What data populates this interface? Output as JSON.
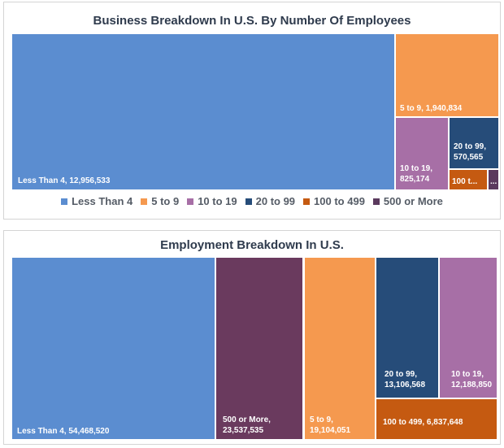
{
  "chart_data": [
    {
      "type": "treemap",
      "title": "Business Breakdown In U.S. By Number Of Employees",
      "legend_position": "bottom",
      "items": [
        {
          "name": "Less Than 4",
          "value": 12956533,
          "label": "Less Than 4, 12,956,533",
          "color": "#5b8dd0"
        },
        {
          "name": "5 to 9",
          "value": 1940834,
          "label": "5 to 9, 1,940,834",
          "color": "#f5994f"
        },
        {
          "name": "10 to 19",
          "value": 825174,
          "label": "10 to 19,\n825,174",
          "color": "#a76fa6"
        },
        {
          "name": "20 to 99",
          "value": 570565,
          "label": "20 to 99,\n570,565",
          "color": "#264c79"
        },
        {
          "name": "100 to 499",
          "value": null,
          "label": "100 t...",
          "color": "#c55a11"
        },
        {
          "name": "500 or More",
          "value": null,
          "label": "...",
          "color": "#5b3a5e"
        }
      ],
      "legend": [
        {
          "name": "Less Than 4",
          "color": "#5b8dd0"
        },
        {
          "name": "5 to 9",
          "color": "#f5994f"
        },
        {
          "name": "10 to 19",
          "color": "#a76fa6"
        },
        {
          "name": "20 to 99",
          "color": "#264c79"
        },
        {
          "name": "100 to 499",
          "color": "#c55a11"
        },
        {
          "name": "500 or More",
          "color": "#5b3a5e"
        }
      ]
    },
    {
      "type": "treemap",
      "title": "Employment Breakdown In U.S.",
      "items": [
        {
          "name": "Less Than 4",
          "value": 54468520,
          "label": "Less Than 4, 54,468,520",
          "color": "#5b8dd0"
        },
        {
          "name": "500 or More",
          "value": 23537535,
          "label": "500 or More,\n23,537,535",
          "color": "#6a3a5e"
        },
        {
          "name": "5 to 9",
          "value": 19104051,
          "label": "5 to 9,\n19,104,051",
          "color": "#f5994f"
        },
        {
          "name": "20 to 99",
          "value": 13106568,
          "label": "20 to 99,\n13,106,568",
          "color": "#264c79"
        },
        {
          "name": "10 to 19",
          "value": 12188850,
          "label": "10 to 19,\n12,188,850",
          "color": "#a76fa6"
        },
        {
          "name": "100 to 499",
          "value": 6837648,
          "label": "100 to 499, 6,837,648",
          "color": "#c55a11"
        }
      ]
    }
  ]
}
